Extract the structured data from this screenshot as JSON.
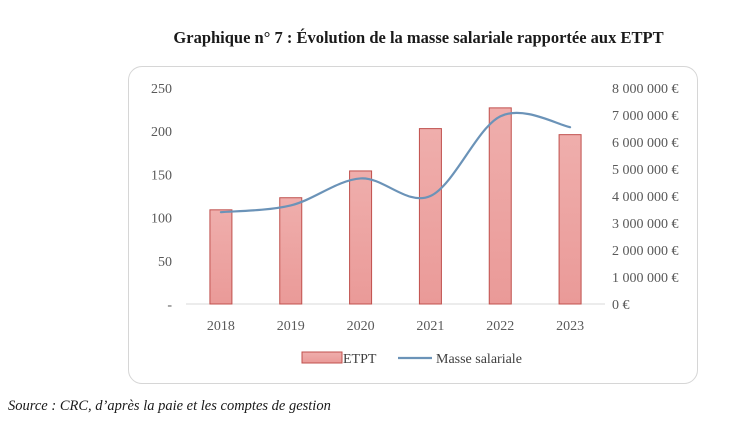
{
  "title": "Graphique n° 7 :  Évolution de la masse salariale rapportée aux ETPT",
  "source": {
    "prefix": "Source",
    "text": " : CRC, d’après la paie et les comptes de gestion"
  },
  "colors": {
    "bar_fill": "#ea9a98",
    "bar_stroke": "#c0504d",
    "line": "#6b93b8"
  },
  "chart_data": {
    "type": "bar",
    "categories": [
      "2018",
      "2019",
      "2020",
      "2021",
      "2022",
      "2023"
    ],
    "series": [
      {
        "name": "ETPT",
        "type": "bar",
        "axis": "left",
        "values": [
          109,
          123,
          154,
          203,
          227,
          196
        ]
      },
      {
        "name": "Masse salariale",
        "type": "line",
        "axis": "right",
        "values": [
          3400000,
          3650000,
          4650000,
          4000000,
          6950000,
          6550000
        ]
      }
    ],
    "y_left": {
      "lim": [
        0,
        250
      ],
      "ticks": [
        0,
        50,
        100,
        150,
        200,
        250
      ],
      "tick_labels": [
        "-",
        "50",
        "100",
        "150",
        "200",
        "250"
      ]
    },
    "y_right": {
      "lim": [
        0,
        8000000
      ],
      "ticks": [
        0,
        1000000,
        2000000,
        3000000,
        4000000,
        5000000,
        6000000,
        7000000,
        8000000
      ],
      "tick_labels": [
        "0 €",
        "1 000 000 €",
        "2 000 000 €",
        "3 000 000 €",
        "4 000 000 €",
        "5 000 000 €",
        "6 000 000 €",
        "7 000 000 €",
        "8 000 000 €"
      ]
    },
    "grid": false,
    "legend": {
      "position": "bottom",
      "entries": [
        "ETPT",
        "Masse salariale"
      ]
    }
  }
}
